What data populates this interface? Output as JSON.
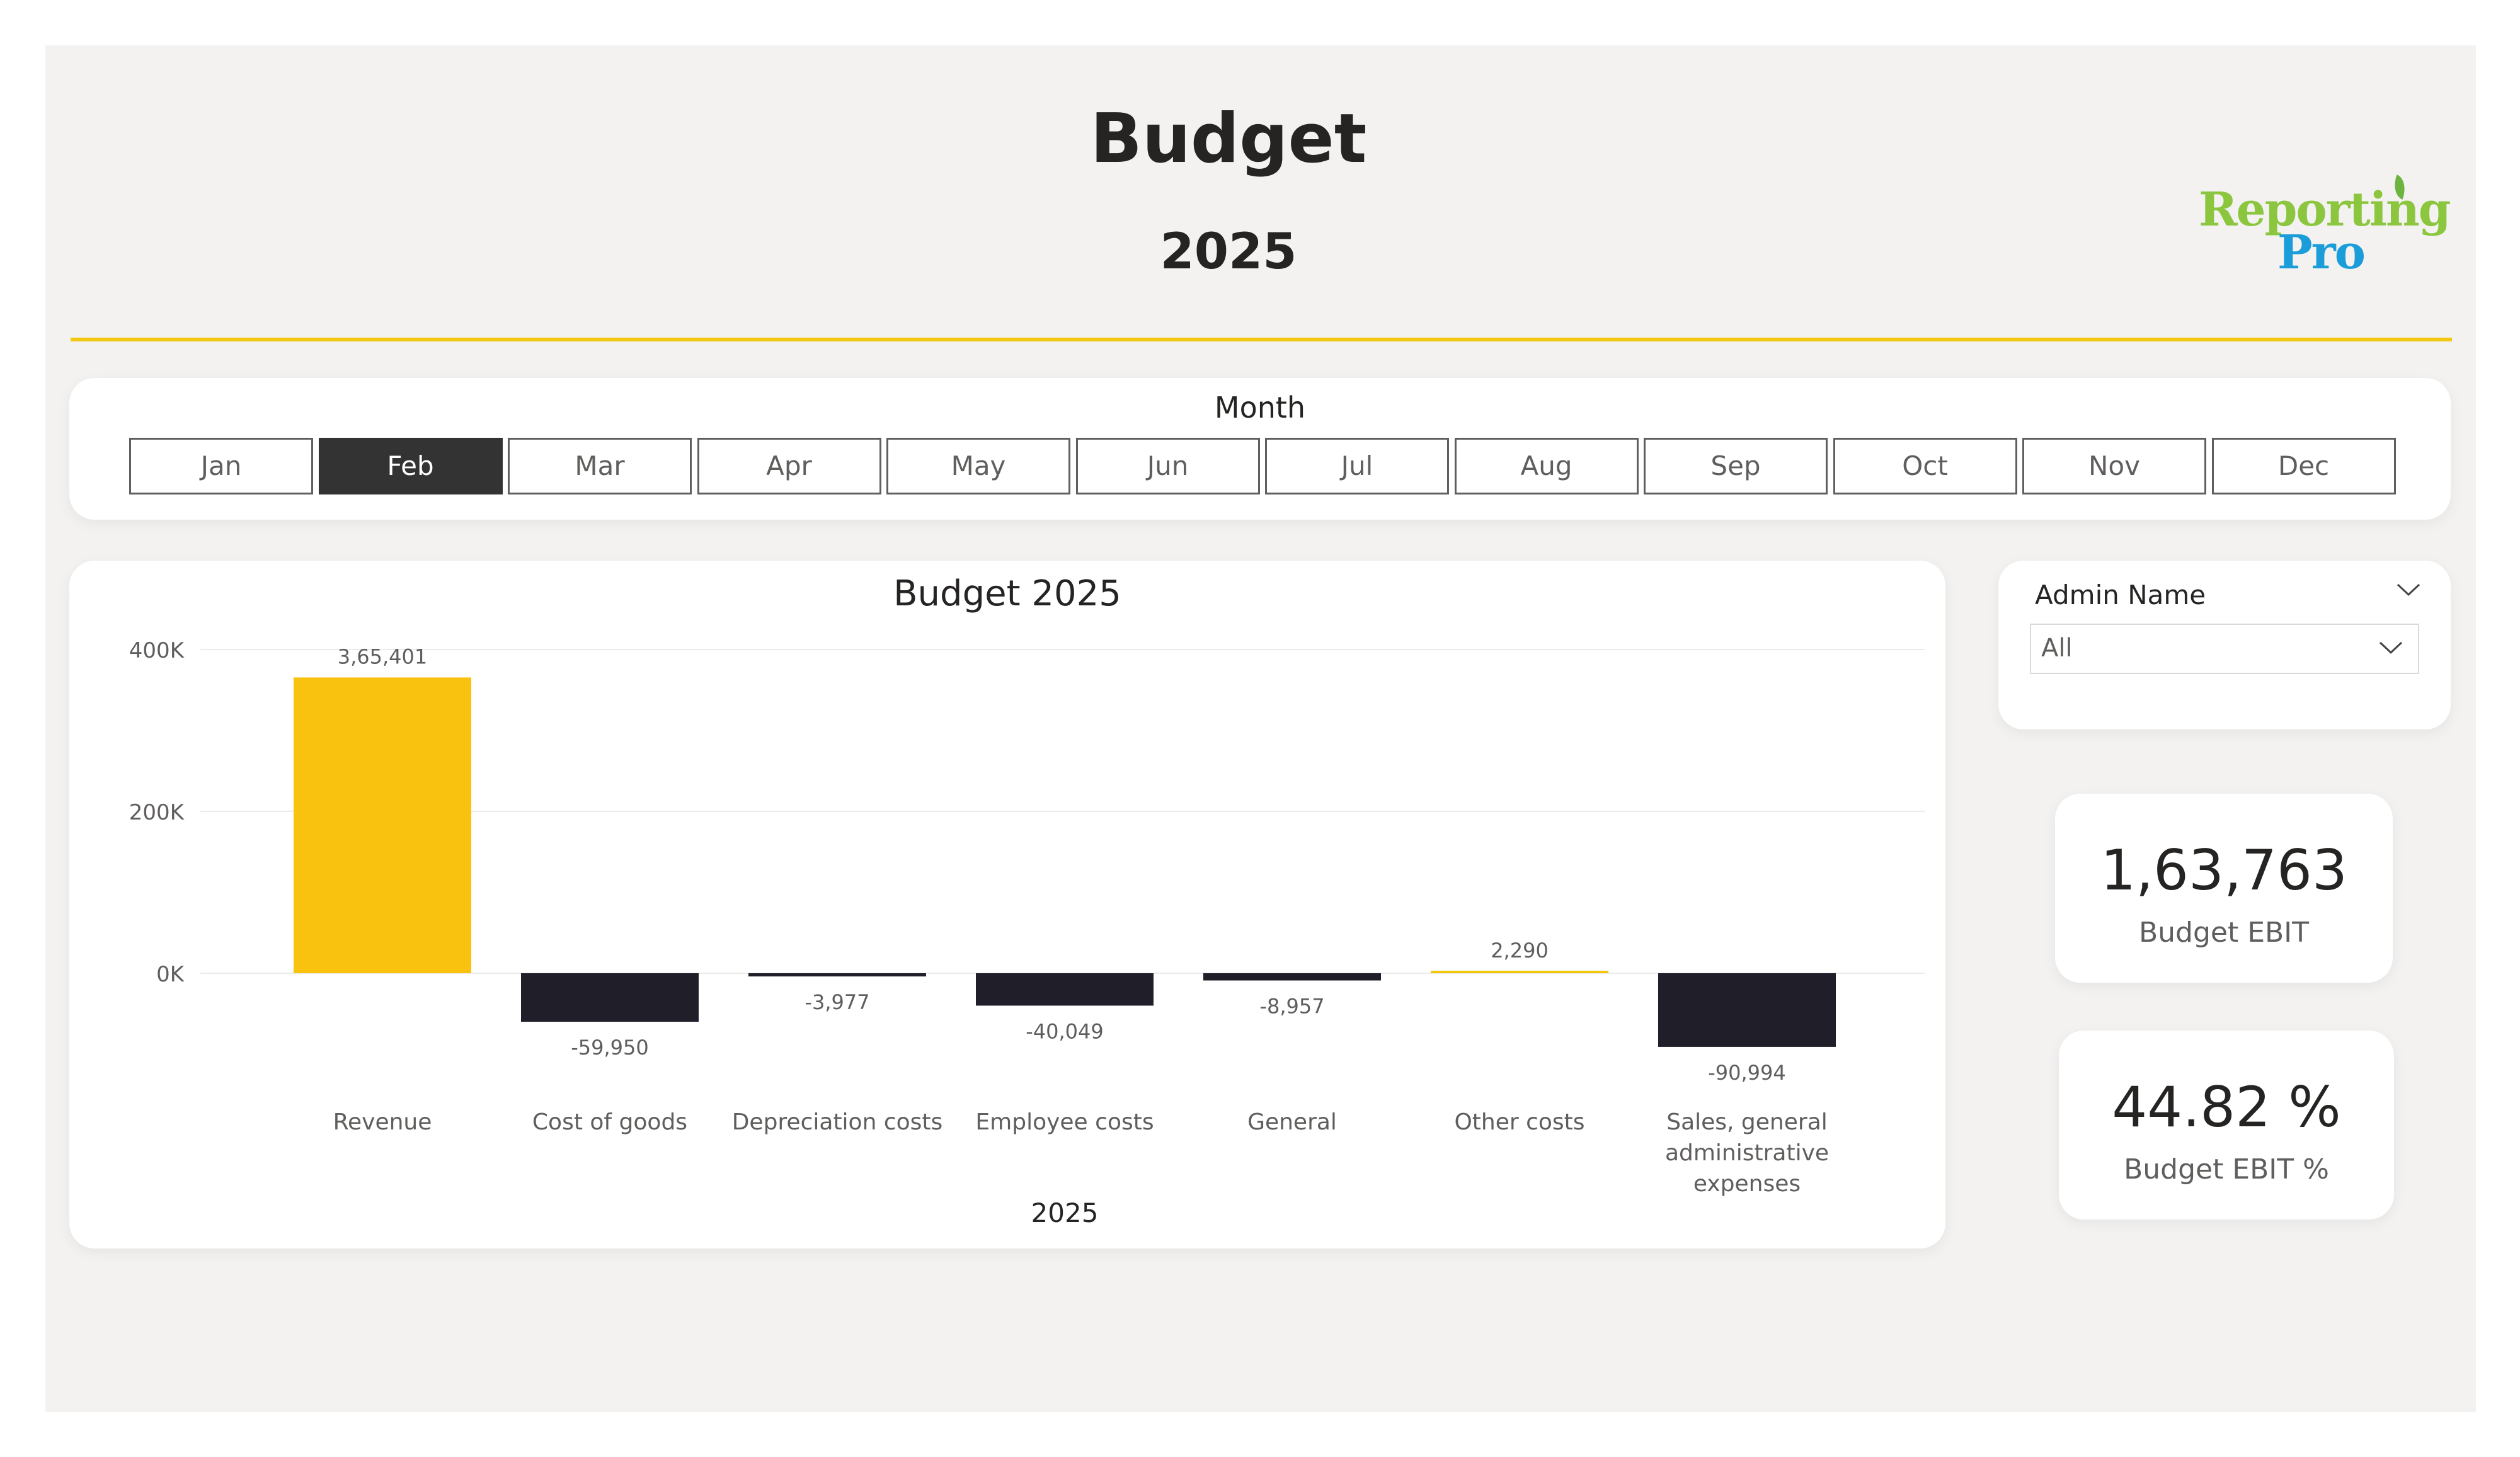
{
  "header": {
    "title": "Budget",
    "subtitle": "2025",
    "logo_line1": "Reporting",
    "logo_line2": "Pro"
  },
  "colors": {
    "accent": "#f2c811",
    "revenue_bar": "#f9c20e",
    "negative_bar": "#1f1e29",
    "positive_bar": "#f2c811",
    "background": "#f3f2f1"
  },
  "month_slicer": {
    "label": "Month",
    "months": [
      "Jan",
      "Feb",
      "Mar",
      "Apr",
      "May",
      "Jun",
      "Jul",
      "Aug",
      "Sep",
      "Oct",
      "Nov",
      "Dec"
    ],
    "selected": "Feb"
  },
  "admin_slicer": {
    "label": "Admin Name",
    "value": "All"
  },
  "kpis": [
    {
      "value": "1,63,763",
      "label": "Budget EBIT"
    },
    {
      "value": "44.82 %",
      "label": "Budget EBIT %"
    }
  ],
  "chart_data": {
    "type": "bar",
    "title": "Budget 2025",
    "xlabel": "2025",
    "ylabel": "",
    "categories": [
      "Revenue",
      "Cost of goods",
      "Depreciation costs",
      "Employee costs",
      "General",
      "Other costs",
      "Sales, general administrative expenses"
    ],
    "category_lines": [
      [
        "Revenue"
      ],
      [
        "Cost of goods"
      ],
      [
        "Depreciation costs"
      ],
      [
        "Employee costs"
      ],
      [
        "General"
      ],
      [
        "Other costs"
      ],
      [
        "Sales, general",
        "administrative",
        "expenses"
      ]
    ],
    "values": [
      365401,
      -59950,
      -3977,
      -40049,
      -8957,
      2290,
      -90994
    ],
    "data_labels": [
      "3,65,401",
      "-59,950",
      "-3,977",
      "-40,049",
      "-8,957",
      "2,290",
      "-90,994"
    ],
    "y_ticks": [
      0,
      200000,
      400000
    ],
    "y_tick_labels": [
      "0K",
      "200K",
      "400K"
    ],
    "ylim": [
      -100000,
      400000
    ],
    "grid": true
  }
}
